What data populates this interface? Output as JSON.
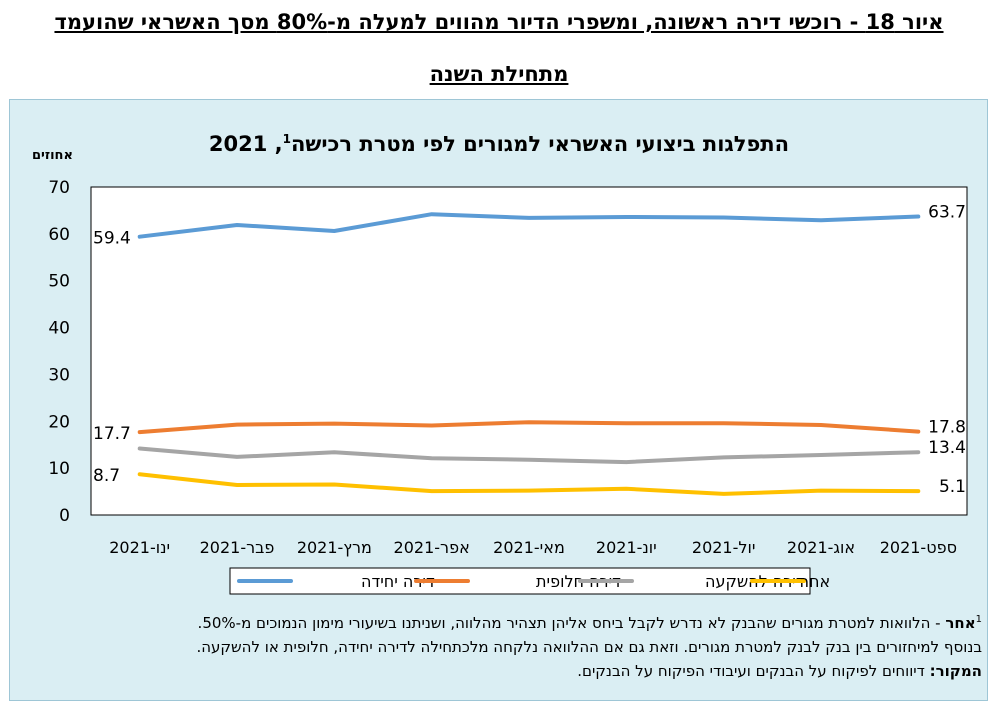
{
  "figure": {
    "title_line1": "איור 18 - רוכשי דירה ראשונה, ומשפרי הדיור מהווים למעלה מ-80% מסך האשראי שהועמד",
    "title_line2": "מתחילת השנה"
  },
  "chart_data": {
    "type": "line",
    "title_main": "התפלגות ביצועי האשראי למגורים לפי מטרת רכישה",
    "title_sup": "1",
    "title_year": ", 2021",
    "ylabel": "אחוזים",
    "ylim": [
      0,
      70
    ],
    "yticks": [
      0,
      10,
      20,
      30,
      40,
      50,
      60,
      70
    ],
    "grid": false,
    "legend_position": "bottom",
    "categories": [
      "ינו-2021",
      "פבר-2021",
      "מרץ-2021",
      "אפר-2021",
      "מאי-2021",
      "יונ-2021",
      "יול-2021",
      "אוג-2021",
      "ספט-2021"
    ],
    "series": [
      {
        "name": "דירה יחידה",
        "color": "#5b9bd5",
        "values": [
          59.4,
          61.9,
          60.6,
          64.2,
          63.4,
          63.6,
          63.5,
          62.9,
          63.7
        ],
        "start_label": "59.4",
        "end_label": "63.7"
      },
      {
        "name": "דירה חלופית",
        "color": "#ed7d31",
        "values": [
          17.7,
          19.3,
          19.5,
          19.1,
          19.8,
          19.6,
          19.6,
          19.2,
          17.8
        ],
        "start_label": "17.7",
        "end_label": "17.8"
      },
      {
        "name": "דירה להשקעה",
        "color": "#a5a5a5",
        "values": [
          14.2,
          12.4,
          13.4,
          12.1,
          11.8,
          11.3,
          12.3,
          12.8,
          13.4
        ],
        "start_label": "",
        "end_label": "13.4"
      },
      {
        "name": "אחר",
        "color": "#ffc000",
        "values": [
          8.7,
          6.4,
          6.5,
          5.1,
          5.2,
          5.6,
          4.5,
          5.2,
          5.1
        ],
        "start_label": "8.7",
        "end_label": "5.1"
      }
    ]
  },
  "notes": {
    "footnote_num": "1",
    "other_bold": "אחר",
    "other_line1": " - הלוואות למטרת מגורים שהבנק לא נדרש לקבל ביחס אליהן תצהיר מהלווה, ושניתנו בשיעורי מימון הנמוכים מ-50%.",
    "other_line2": "בנוסף למיחזורים בין בנק לבנק למטרת מגורים. וזאת גם אם ההלוואה נלקחה מלכתחילה לדירה יחידה, חלופית או להשקעה.",
    "source_bold": "המקור:",
    "source_text": " דיווחים לפיקוח על הבנקים ועיבודי הפיקוח על הבנקים."
  }
}
